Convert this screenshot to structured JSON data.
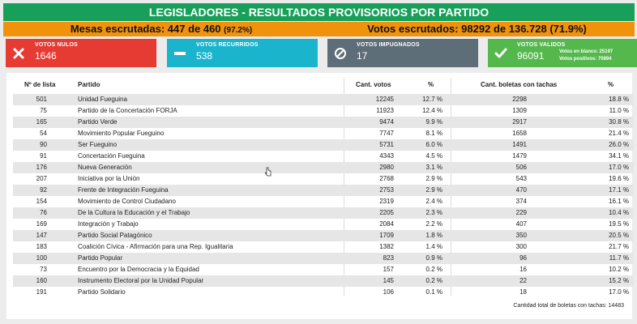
{
  "title": "LEGISLADORES - RESULTADOS PROVISORIOS POR PARTIDO",
  "summary": {
    "mesas_label": "Mesas escrutadas: 447 de 460",
    "mesas_pct": "(97.2%)",
    "votos_label": "Votos escrutados: 98292 de 136.728 (71.9%)"
  },
  "cards": {
    "nulos": {
      "label": "VOTOS NULOS",
      "value": "1646",
      "color": "#e63b33",
      "icon": "x-icon"
    },
    "recurridos": {
      "label": "VOTOS RECURRIDOS",
      "value": "538",
      "color": "#1bb4cd",
      "icon": "minus-icon"
    },
    "impugnados": {
      "label": "VOTOS IMPUGNADOS",
      "value": "17",
      "color": "#5d6e78",
      "icon": "ban-icon"
    },
    "validos": {
      "label": "VOTOS VALIDOS",
      "value": "96091",
      "color": "#54b84c",
      "icon": "check-icon",
      "blanco": "Votos en blanco: 25197",
      "positivos": "Votos positivos: 70894"
    }
  },
  "table": {
    "headers": [
      "Nº de lista",
      "Partido",
      "Cant. votos",
      "%",
      "Cant. boletas con tachas",
      "%"
    ],
    "rows": [
      [
        "501",
        "Unidad Fueguina",
        "12245",
        "12.7 %",
        "2298",
        "18.8 %"
      ],
      [
        "75",
        "Partido de la Concertación FORJA",
        "11923",
        "12.4 %",
        "1309",
        "11.0 %"
      ],
      [
        "165",
        "Partido Verde",
        "9474",
        "9.9 %",
        "2917",
        "30.8 %"
      ],
      [
        "54",
        "Movimiento Popular Fueguino",
        "7747",
        "8.1 %",
        "1658",
        "21.4 %"
      ],
      [
        "90",
        "Ser Fueguino",
        "5731",
        "6.0 %",
        "1491",
        "26.0 %"
      ],
      [
        "91",
        "Concertación Fueguina",
        "4343",
        "4.5 %",
        "1479",
        "34.1 %"
      ],
      [
        "176",
        "Nueva Generación",
        "2980",
        "3.1 %",
        "506",
        "17.0 %"
      ],
      [
        "207",
        "Iniciativa por la Unión",
        "2768",
        "2.9 %",
        "543",
        "19.6 %"
      ],
      [
        "92",
        "Frente de Integración Fueguina",
        "2753",
        "2.9 %",
        "470",
        "17.1 %"
      ],
      [
        "154",
        "Movimiento de Control Ciudadano",
        "2319",
        "2.4 %",
        "374",
        "16.1 %"
      ],
      [
        "76",
        "De la Cultura la Educación y el Trabajo",
        "2205",
        "2.3 %",
        "229",
        "10.4 %"
      ],
      [
        "169",
        "Integración y Trabajo",
        "2084",
        "2.2 %",
        "407",
        "19.5 %"
      ],
      [
        "147",
        "Partido Social Patagónico",
        "1709",
        "1.8 %",
        "350",
        "20.5 %"
      ],
      [
        "183",
        "Coalición Cívica - Afirmación para una Rep. Igualitaria",
        "1382",
        "1.4 %",
        "300",
        "21.7 %"
      ],
      [
        "100",
        "Partido Popular",
        "823",
        "0.9 %",
        "96",
        "11.7 %"
      ],
      [
        "73",
        "Encuentro por la Democracia y la Equidad",
        "157",
        "0.2 %",
        "16",
        "10.2 %"
      ],
      [
        "160",
        "Instrumento Electoral por la Unidad Popular",
        "145",
        "0.2 %",
        "22",
        "15.2 %"
      ],
      [
        "191",
        "Partido Solidario",
        "106",
        "0.1 %",
        "18",
        "17.0 %"
      ]
    ],
    "footer": "Cantidad total de boletas con tachas: 14483"
  }
}
